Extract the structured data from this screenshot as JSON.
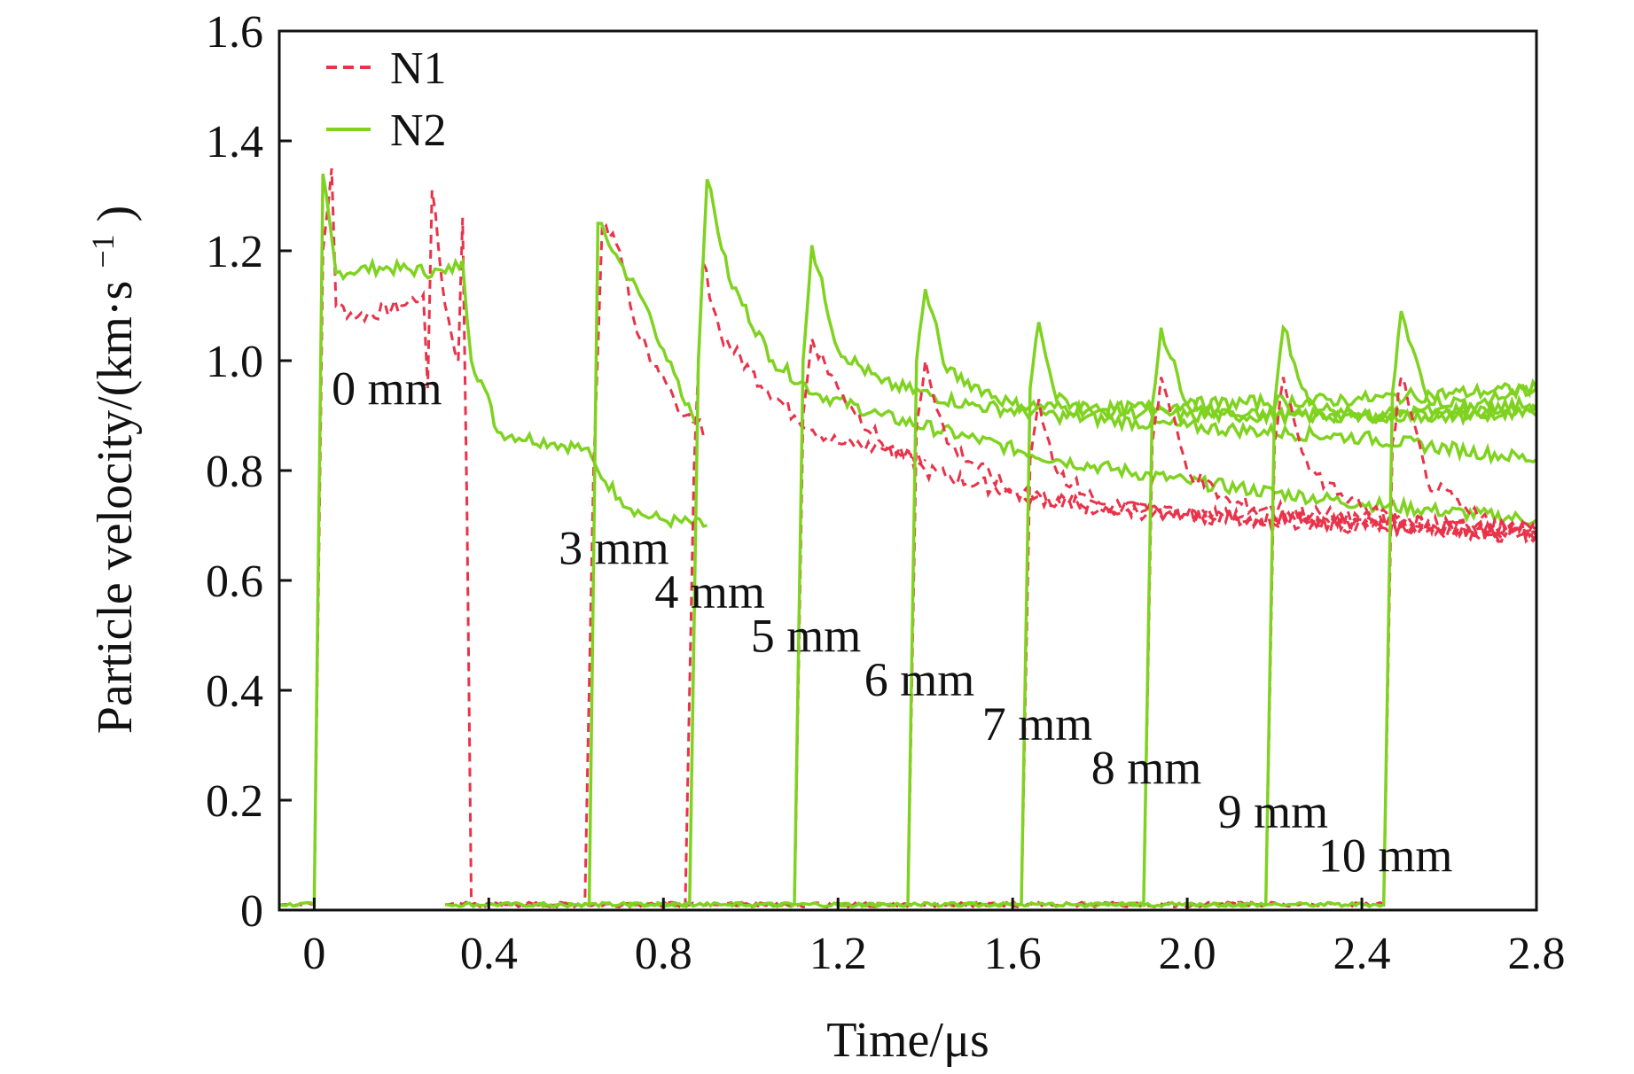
{
  "chart_data": {
    "type": "line",
    "title": "",
    "xlabel": "Time/μs",
    "ylabel": "Particle velocity/(km·s",
    "ylabel_sup": "−1",
    "ylabel_close": ")",
    "xlim": [
      -0.08,
      2.8
    ],
    "ylim": [
      0,
      1.6
    ],
    "x_ticks": [
      0,
      0.4,
      0.8,
      1.2,
      1.6,
      2.0,
      2.4,
      2.8
    ],
    "x_tick_labels": [
      "0",
      "0.4",
      "0.8",
      "1.2",
      "1.6",
      "2.0",
      "2.4",
      "2.8"
    ],
    "y_ticks": [
      0,
      0.2,
      0.4,
      0.6,
      0.8,
      1.0,
      1.2,
      1.4,
      1.6
    ],
    "y_tick_labels": [
      "0",
      "0.2",
      "0.4",
      "0.6",
      "0.8",
      "1.0",
      "1.2",
      "1.4",
      "1.6"
    ],
    "grid": false,
    "legend_position": "top-left",
    "colors": {
      "N1": "#e8334a",
      "N2": "#7fd320"
    },
    "series": [
      {
        "name": "N1",
        "style": "dashed",
        "color": "#e8334a"
      },
      {
        "name": "N2",
        "style": "solid",
        "color": "#7fd320"
      }
    ],
    "gauges": [
      {
        "label": "0 mm",
        "label_pos": [
          0.04,
          0.92
        ],
        "N1": [
          [
            -0.08,
            0.01
          ],
          [
            0.0,
            0.01
          ],
          [
            0.02,
            1.2
          ],
          [
            0.04,
            1.35
          ],
          [
            0.05,
            1.1
          ],
          [
            0.1,
            1.08
          ],
          [
            0.2,
            1.1
          ],
          [
            0.25,
            1.12
          ],
          [
            0.26,
            0.95
          ],
          [
            0.27,
            1.31
          ],
          [
            0.3,
            1.1
          ],
          [
            0.33,
            1.0
          ],
          [
            0.34,
            1.26
          ],
          [
            0.35,
            0.73
          ],
          [
            0.36,
            0.01
          ],
          [
            0.6,
            0.01
          ]
        ],
        "N2": [
          [
            -0.08,
            0.01
          ],
          [
            0.0,
            0.01
          ],
          [
            0.02,
            1.34
          ],
          [
            0.05,
            1.16
          ],
          [
            0.15,
            1.17
          ],
          [
            0.3,
            1.16
          ],
          [
            0.34,
            1.18
          ],
          [
            0.36,
            1.0
          ],
          [
            0.39,
            0.95
          ],
          [
            0.42,
            0.87
          ],
          [
            0.55,
            0.85
          ],
          [
            0.62,
            0.84
          ],
          [
            0.65,
            0.8
          ],
          [
            0.7,
            0.75
          ],
          [
            0.75,
            0.72
          ],
          [
            0.8,
            0.71
          ],
          [
            0.9,
            0.7
          ]
        ]
      },
      {
        "label": "3 mm",
        "label_pos": [
          0.56,
          0.63
        ],
        "N1": [
          [
            0.3,
            0.01
          ],
          [
            0.62,
            0.01
          ],
          [
            0.64,
            0.8
          ],
          [
            0.66,
            1.25
          ],
          [
            0.7,
            1.2
          ],
          [
            0.74,
            1.05
          ],
          [
            0.8,
            0.97
          ],
          [
            0.85,
            0.9
          ],
          [
            0.9,
            0.87
          ]
        ],
        "N2": [
          [
            0.3,
            0.01
          ],
          [
            0.63,
            0.01
          ],
          [
            0.65,
            1.25
          ],
          [
            0.7,
            1.18
          ],
          [
            0.76,
            1.1
          ],
          [
            0.8,
            1.02
          ],
          [
            0.85,
            0.92
          ],
          [
            0.88,
            0.89
          ]
        ]
      },
      {
        "label": "4 mm",
        "label_pos": [
          0.78,
          0.55
        ],
        "N1": [
          [
            0.5,
            0.01
          ],
          [
            0.85,
            0.01
          ],
          [
            0.87,
            0.8
          ],
          [
            0.89,
            1.18
          ],
          [
            0.93,
            1.05
          ],
          [
            1.0,
            0.98
          ],
          [
            1.1,
            0.9
          ],
          [
            1.2,
            0.85
          ],
          [
            1.3,
            0.84
          ],
          [
            1.4,
            0.82
          ]
        ],
        "N2": [
          [
            0.5,
            0.01
          ],
          [
            0.86,
            0.01
          ],
          [
            0.88,
            1.0
          ],
          [
            0.9,
            1.33
          ],
          [
            0.95,
            1.15
          ],
          [
            1.05,
            1.0
          ],
          [
            1.15,
            0.94
          ],
          [
            1.3,
            0.9
          ],
          [
            1.5,
            0.86
          ],
          [
            1.7,
            0.82
          ],
          [
            2.0,
            0.78
          ],
          [
            2.4,
            0.74
          ],
          [
            2.8,
            0.71
          ]
        ]
      },
      {
        "label": "5 mm",
        "label_pos": [
          1.0,
          0.47
        ],
        "N1": [
          [
            0.7,
            0.01
          ],
          [
            1.1,
            0.01
          ],
          [
            1.12,
            0.9
          ],
          [
            1.14,
            1.04
          ],
          [
            1.2,
            0.95
          ],
          [
            1.3,
            0.85
          ],
          [
            1.4,
            0.8
          ],
          [
            1.6,
            0.76
          ],
          [
            1.8,
            0.73
          ],
          [
            2.0,
            0.72
          ],
          [
            2.4,
            0.7
          ],
          [
            2.8,
            0.69
          ]
        ],
        "N2": [
          [
            0.7,
            0.01
          ],
          [
            1.1,
            0.01
          ],
          [
            1.12,
            1.0
          ],
          [
            1.14,
            1.21
          ],
          [
            1.2,
            1.02
          ],
          [
            1.3,
            0.96
          ],
          [
            1.5,
            0.92
          ],
          [
            1.7,
            0.9
          ],
          [
            2.0,
            0.88
          ],
          [
            2.4,
            0.86
          ],
          [
            2.8,
            0.82
          ]
        ]
      },
      {
        "label": "6 mm",
        "label_pos": [
          1.26,
          0.39
        ],
        "N1": [
          [
            0.95,
            0.01
          ],
          [
            1.36,
            0.01
          ],
          [
            1.38,
            0.88
          ],
          [
            1.4,
            1.0
          ],
          [
            1.45,
            0.85
          ],
          [
            1.6,
            0.76
          ],
          [
            1.8,
            0.73
          ],
          [
            2.0,
            0.72
          ],
          [
            2.4,
            0.7
          ],
          [
            2.8,
            0.68
          ]
        ],
        "N2": [
          [
            0.95,
            0.01
          ],
          [
            1.36,
            0.01
          ],
          [
            1.38,
            1.0
          ],
          [
            1.4,
            1.13
          ],
          [
            1.45,
            0.98
          ],
          [
            1.6,
            0.92
          ],
          [
            1.8,
            0.91
          ],
          [
            2.0,
            0.9
          ],
          [
            2.4,
            0.9
          ],
          [
            2.8,
            0.9
          ]
        ]
      },
      {
        "label": "7 mm",
        "label_pos": [
          1.53,
          0.31
        ],
        "N1": [
          [
            1.2,
            0.01
          ],
          [
            1.62,
            0.01
          ],
          [
            1.64,
            0.82
          ],
          [
            1.66,
            0.93
          ],
          [
            1.7,
            0.8
          ],
          [
            1.8,
            0.74
          ],
          [
            2.0,
            0.72
          ],
          [
            2.4,
            0.71
          ],
          [
            2.8,
            0.69
          ]
        ],
        "N2": [
          [
            1.2,
            0.01
          ],
          [
            1.62,
            0.01
          ],
          [
            1.64,
            0.95
          ],
          [
            1.66,
            1.07
          ],
          [
            1.7,
            0.93
          ],
          [
            1.8,
            0.91
          ],
          [
            2.0,
            0.92
          ],
          [
            2.4,
            0.93
          ],
          [
            2.8,
            0.95
          ]
        ]
      },
      {
        "label": "8 mm",
        "label_pos": [
          1.78,
          0.23
        ],
        "N1": [
          [
            1.45,
            0.01
          ],
          [
            1.9,
            0.01
          ],
          [
            1.92,
            0.85
          ],
          [
            1.94,
            0.97
          ],
          [
            2.0,
            0.8
          ],
          [
            2.1,
            0.74
          ],
          [
            2.4,
            0.71
          ],
          [
            2.8,
            0.69
          ]
        ],
        "N2": [
          [
            1.45,
            0.01
          ],
          [
            1.9,
            0.01
          ],
          [
            1.92,
            0.92
          ],
          [
            1.94,
            1.06
          ],
          [
            2.0,
            0.92
          ],
          [
            2.1,
            0.9
          ],
          [
            2.4,
            0.9
          ],
          [
            2.8,
            0.92
          ]
        ]
      },
      {
        "label": "9 mm",
        "label_pos": [
          2.07,
          0.15
        ],
        "N1": [
          [
            1.75,
            0.01
          ],
          [
            2.18,
            0.01
          ],
          [
            2.2,
            0.85
          ],
          [
            2.22,
            0.97
          ],
          [
            2.28,
            0.8
          ],
          [
            2.4,
            0.73
          ],
          [
            2.6,
            0.7
          ],
          [
            2.8,
            0.68
          ]
        ],
        "N2": [
          [
            1.75,
            0.01
          ],
          [
            2.18,
            0.01
          ],
          [
            2.2,
            0.92
          ],
          [
            2.22,
            1.06
          ],
          [
            2.28,
            0.92
          ],
          [
            2.4,
            0.9
          ],
          [
            2.6,
            0.9
          ],
          [
            2.8,
            0.91
          ]
        ]
      },
      {
        "label": "10 mm",
        "label_pos": [
          2.3,
          0.07
        ],
        "N1": [
          [
            2.0,
            0.01
          ],
          [
            2.45,
            0.01
          ],
          [
            2.47,
            0.85
          ],
          [
            2.49,
            0.97
          ],
          [
            2.55,
            0.78
          ],
          [
            2.65,
            0.72
          ],
          [
            2.8,
            0.68
          ]
        ],
        "N2": [
          [
            2.0,
            0.01
          ],
          [
            2.45,
            0.01
          ],
          [
            2.47,
            0.94
          ],
          [
            2.49,
            1.09
          ],
          [
            2.55,
            0.93
          ],
          [
            2.65,
            0.92
          ],
          [
            2.8,
            0.95
          ]
        ]
      }
    ]
  }
}
